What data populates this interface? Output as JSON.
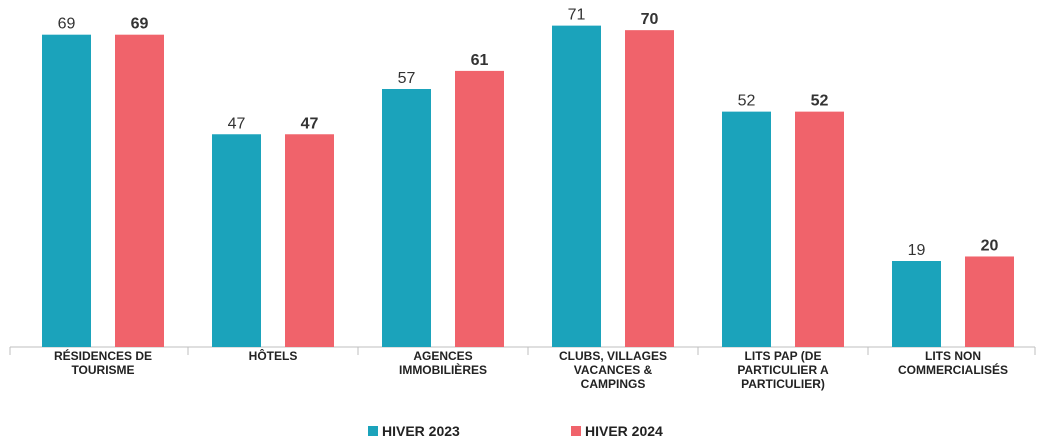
{
  "chart_data": {
    "type": "bar",
    "categories": [
      "RÉSIDENCES DE\nTOURISME",
      "HÔTELS",
      "AGENCES\nIMMOBILIÈRES",
      "CLUBS, VILLAGES\nVACANCES &\nCAMPINGS",
      "LITS PAP (DE\nPARTICULIER A\nPARTICULIER)",
      "LITS NON\nCOMMERCIALISÉS"
    ],
    "series": [
      {
        "name": "HIVER 2023",
        "color": "#1ba3bb",
        "values": [
          69,
          47,
          57,
          71,
          52,
          19
        ]
      },
      {
        "name": "HIVER 2024",
        "color": "#f0636b",
        "values": [
          69,
          47,
          61,
          70,
          52,
          20
        ]
      }
    ],
    "ylim": [
      0,
      76
    ]
  }
}
